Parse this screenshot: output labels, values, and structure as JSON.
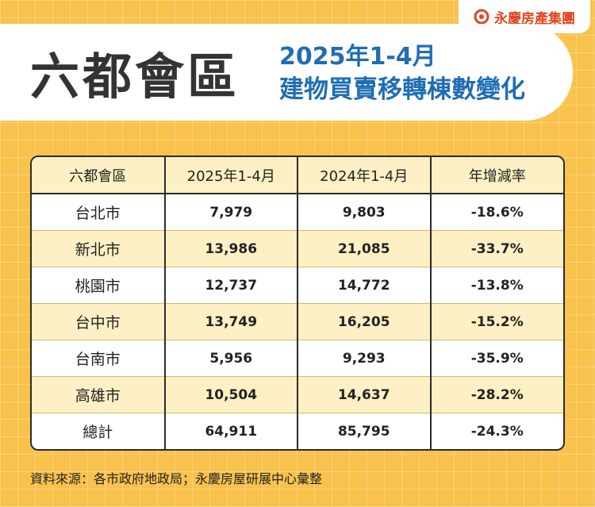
{
  "header": {
    "brand": "永慶房產集團",
    "title": "六都會區",
    "period": "2025年1-4月",
    "subtitle": "建物買賣移轉棟數變化"
  },
  "table": {
    "columns": [
      "六都會區",
      "2025年1-4月",
      "2024年1-4月",
      "年增減率"
    ],
    "rows": [
      [
        "台北市",
        "7,979",
        "9,803",
        "-18.6%"
      ],
      [
        "新北市",
        "13,986",
        "21,085",
        "-33.7%"
      ],
      [
        "桃園市",
        "12,737",
        "14,772",
        "-13.8%"
      ],
      [
        "台中市",
        "13,749",
        "16,205",
        "-15.2%"
      ],
      [
        "台南市",
        "5,956",
        "9,293",
        "-35.9%"
      ],
      [
        "高雄市",
        "10,504",
        "14,637",
        "-28.2%"
      ],
      [
        "總計",
        "64,911",
        "85,795",
        "-24.3%"
      ]
    ]
  },
  "footer": {
    "source": "資料來源：各市政府地政局；永慶房屋研展中心彙整"
  }
}
